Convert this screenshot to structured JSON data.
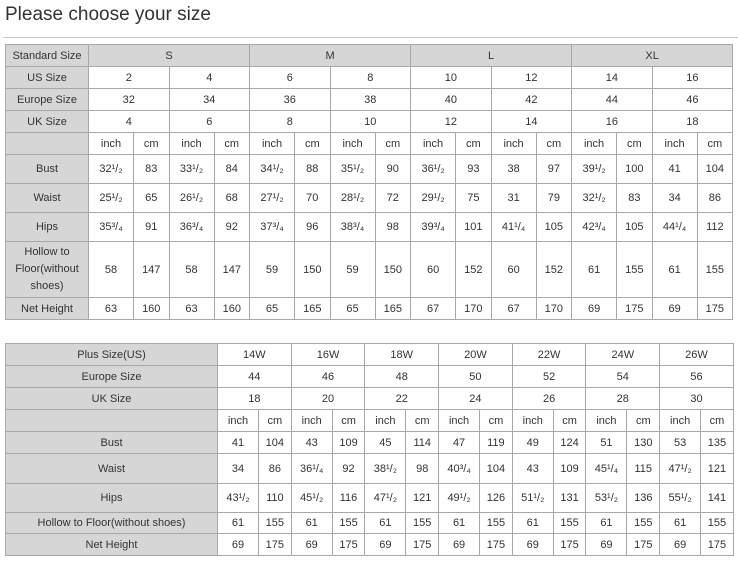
{
  "title": "Please choose your size",
  "standard_table": {
    "header_label": "Standard Size",
    "groups": [
      "S",
      "M",
      "L",
      "XL"
    ],
    "rows": [
      {
        "label": "US Size",
        "values": [
          "2",
          "4",
          "6",
          "8",
          "10",
          "12",
          "14",
          "16"
        ]
      },
      {
        "label": "Europe Size",
        "values": [
          "32",
          "34",
          "36",
          "38",
          "40",
          "42",
          "44",
          "46"
        ]
      },
      {
        "label": "UK Size",
        "values": [
          "4",
          "6",
          "8",
          "10",
          "12",
          "14",
          "16",
          "18"
        ]
      }
    ],
    "unit_labels": [
      "inch",
      "cm"
    ],
    "measurements": [
      {
        "label": "Bust",
        "values": [
          "32¹/₂",
          "83",
          "33¹/₂",
          "84",
          "34¹/₂",
          "88",
          "35¹/₂",
          "90",
          "36¹/₂",
          "93",
          "38",
          "97",
          "39¹/₂",
          "100",
          "41",
          "104"
        ]
      },
      {
        "label": "Waist",
        "values": [
          "25¹/₂",
          "65",
          "26¹/₂",
          "68",
          "27¹/₂",
          "70",
          "28¹/₂",
          "72",
          "29¹/₂",
          "75",
          "31",
          "79",
          "32¹/₂",
          "83",
          "34",
          "86"
        ]
      },
      {
        "label": "Hips",
        "values": [
          "35³/₄",
          "91",
          "36³/₄",
          "92",
          "37³/₄",
          "96",
          "38³/₄",
          "98",
          "39³/₄",
          "101",
          "41¹/₄",
          "105",
          "42³/₄",
          "105",
          "44¹/₄",
          "112"
        ]
      },
      {
        "label": "Hollow to Floor(without shoes)",
        "values": [
          "58",
          "147",
          "58",
          "147",
          "59",
          "150",
          "59",
          "150",
          "60",
          "152",
          "60",
          "152",
          "61",
          "155",
          "61",
          "155"
        ]
      },
      {
        "label": "Net Height",
        "values": [
          "63",
          "160",
          "63",
          "160",
          "65",
          "165",
          "65",
          "165",
          "67",
          "170",
          "67",
          "170",
          "69",
          "175",
          "69",
          "175"
        ]
      }
    ]
  },
  "plus_table": {
    "rows": [
      {
        "label": "Plus Size(US)",
        "values": [
          "14W",
          "16W",
          "18W",
          "20W",
          "22W",
          "24W",
          "26W"
        ]
      },
      {
        "label": "Europe Size",
        "values": [
          "44",
          "46",
          "48",
          "50",
          "52",
          "54",
          "56"
        ]
      },
      {
        "label": "UK Size",
        "values": [
          "18",
          "20",
          "22",
          "24",
          "26",
          "28",
          "30"
        ]
      }
    ],
    "unit_labels": [
      "inch",
      "cm"
    ],
    "measurements": [
      {
        "label": "Bust",
        "values": [
          "41",
          "104",
          "43",
          "109",
          "45",
          "114",
          "47",
          "119",
          "49",
          "124",
          "51",
          "130",
          "53",
          "135"
        ]
      },
      {
        "label": "Waist",
        "values": [
          "34",
          "86",
          "36¹/₄",
          "92",
          "38¹/₂",
          "98",
          "40³/₄",
          "104",
          "43",
          "109",
          "45¹/₄",
          "115",
          "47¹/₂",
          "121"
        ]
      },
      {
        "label": "Hips",
        "values": [
          "43¹/₂",
          "110",
          "45¹/₂",
          "116",
          "47¹/₂",
          "121",
          "49¹/₂",
          "126",
          "51¹/₂",
          "131",
          "53¹/₂",
          "136",
          "55¹/₂",
          "141"
        ]
      },
      {
        "label": "Hollow to Floor(without shoes)",
        "values": [
          "61",
          "155",
          "61",
          "155",
          "61",
          "155",
          "61",
          "155",
          "61",
          "155",
          "61",
          "155",
          "61",
          "155"
        ]
      },
      {
        "label": "Net Height",
        "values": [
          "69",
          "175",
          "69",
          "175",
          "69",
          "175",
          "69",
          "175",
          "69",
          "175",
          "69",
          "175",
          "69",
          "175"
        ]
      }
    ]
  }
}
